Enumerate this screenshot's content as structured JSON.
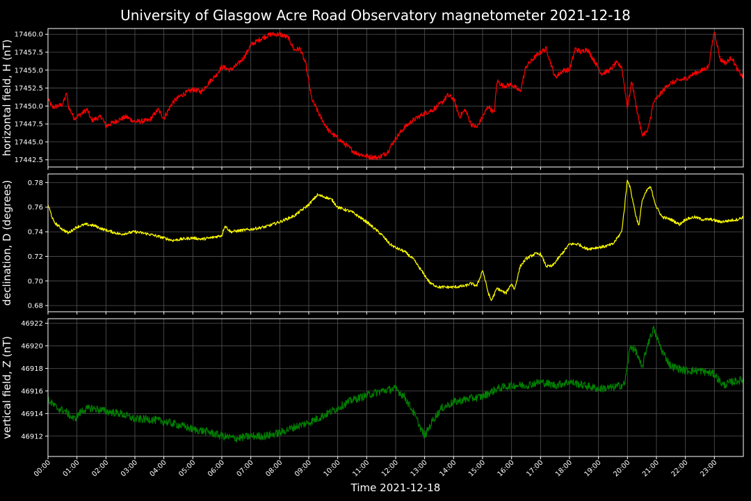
{
  "page": {
    "title": "University of Glasgow Acre Road Observatory magnetometer 2021-12-18",
    "xlabel": "Time 2021-12-18"
  },
  "chart_data": [
    {
      "type": "line",
      "ylabel": "horizontal field, H (nT)",
      "series_color": "#ff0000",
      "ylim": [
        17441.5,
        17460.8
      ],
      "yticks": [
        "17442.5",
        "17445.0",
        "17447.5",
        "17450.0",
        "17452.5",
        "17455.0",
        "17457.5",
        "17460.0"
      ],
      "ytick_values": [
        17442.5,
        17445.0,
        17447.5,
        17450.0,
        17452.5,
        17455.0,
        17457.5,
        17460.0
      ],
      "noise": 0.35,
      "x_hours": [
        0,
        0.15,
        0.5,
        0.65,
        0.7,
        0.9,
        1.0,
        1.35,
        1.5,
        1.85,
        2.0,
        2.4,
        2.7,
        3.0,
        3.5,
        3.8,
        4.0,
        4.3,
        4.6,
        5.0,
        5.3,
        5.6,
        5.8,
        6.0,
        6.3,
        6.6,
        6.8,
        7.0,
        7.4,
        7.7,
        8.0,
        8.3,
        8.5,
        8.7,
        8.9,
        9.1,
        9.4,
        9.7,
        10.0,
        10.3,
        10.6,
        11.0,
        11.4,
        11.7,
        12.0,
        12.3,
        12.6,
        13.0,
        13.3,
        13.6,
        13.8,
        14.0,
        14.2,
        14.4,
        14.6,
        14.8,
        15.0,
        15.2,
        15.4,
        15.5,
        15.7,
        16.0,
        16.3,
        16.5,
        16.8,
        17.0,
        17.2,
        17.5,
        17.8,
        18.0,
        18.2,
        18.4,
        18.6,
        18.9,
        19.1,
        19.4,
        19.6,
        19.8,
        20.0,
        20.15,
        20.3,
        20.5,
        20.7,
        20.9,
        21.1,
        21.4,
        21.7,
        22.0,
        22.3,
        22.6,
        22.8,
        23.0,
        23.2,
        23.4,
        23.6,
        23.8,
        24.0
      ],
      "values": [
        17451.0,
        17449.8,
        17450.2,
        17451.8,
        17450.0,
        17448.3,
        17448.5,
        17449.5,
        17448.0,
        17448.5,
        17447.2,
        17448.0,
        17448.5,
        17447.8,
        17448.0,
        17449.5,
        17448.3,
        17450.5,
        17451.5,
        17452.3,
        17452.0,
        17453.5,
        17454.3,
        17455.5,
        17455.0,
        17456.0,
        17457.0,
        17458.5,
        17459.5,
        17460.0,
        17460.0,
        17459.5,
        17457.8,
        17458.0,
        17455.8,
        17451.0,
        17448.5,
        17446.5,
        17445.5,
        17444.5,
        17443.5,
        17443.0,
        17442.8,
        17443.5,
        17445.5,
        17447.0,
        17448.0,
        17449.0,
        17449.5,
        17450.5,
        17451.5,
        17451.0,
        17448.5,
        17449.5,
        17447.5,
        17447.0,
        17448.5,
        17450.0,
        17449.0,
        17453.5,
        17452.8,
        17453.0,
        17452.0,
        17455.5,
        17456.8,
        17457.5,
        17458.0,
        17454.0,
        17455.0,
        17455.0,
        17458.0,
        17457.5,
        17458.0,
        17456.0,
        17454.5,
        17455.0,
        17456.0,
        17455.5,
        17449.8,
        17453.5,
        17450.0,
        17446.0,
        17446.5,
        17450.5,
        17451.5,
        17453.0,
        17453.5,
        17453.8,
        17454.5,
        17455.0,
        17455.5,
        17460.5,
        17456.5,
        17456.0,
        17456.8,
        17455.0,
        17454.0
      ]
    },
    {
      "type": "line",
      "ylabel": "declination, D (degrees)",
      "series_color": "#ffff00",
      "ylim": [
        0.675,
        0.787
      ],
      "yticks": [
        "0.68",
        "0.70",
        "0.72",
        "0.74",
        "0.76",
        "0.78"
      ],
      "ytick_values": [
        0.68,
        0.7,
        0.72,
        0.74,
        0.76,
        0.78
      ],
      "noise": 0.0012,
      "x_hours": [
        0,
        0.2,
        0.5,
        0.7,
        1.0,
        1.3,
        1.6,
        1.9,
        2.2,
        2.5,
        3.0,
        3.5,
        4.0,
        4.3,
        4.6,
        5.0,
        5.3,
        5.6,
        6.0,
        6.1,
        6.3,
        7.0,
        7.5,
        8.0,
        8.5,
        9.0,
        9.3,
        9.6,
        9.8,
        10.0,
        10.5,
        11.0,
        11.5,
        11.8,
        12.0,
        12.3,
        12.6,
        12.9,
        13.2,
        13.5,
        14.0,
        14.4,
        14.6,
        14.8,
        14.9,
        15.0,
        15.2,
        15.3,
        15.5,
        15.8,
        16.0,
        16.1,
        16.3,
        16.5,
        16.8,
        17.0,
        17.2,
        17.4,
        17.6,
        18.0,
        18.3,
        18.6,
        18.9,
        19.2,
        19.5,
        19.8,
        19.9,
        20.0,
        20.1,
        20.3,
        20.4,
        20.5,
        20.7,
        20.8,
        21.0,
        21.2,
        21.5,
        21.8,
        22.0,
        22.3,
        22.6,
        22.9,
        23.2,
        23.5,
        23.8,
        24.0
      ],
      "values": [
        0.762,
        0.748,
        0.742,
        0.739,
        0.744,
        0.746,
        0.745,
        0.742,
        0.74,
        0.738,
        0.74,
        0.738,
        0.735,
        0.733,
        0.734,
        0.735,
        0.734,
        0.735,
        0.737,
        0.745,
        0.74,
        0.742,
        0.744,
        0.748,
        0.753,
        0.762,
        0.77,
        0.768,
        0.766,
        0.76,
        0.756,
        0.748,
        0.738,
        0.73,
        0.727,
        0.724,
        0.718,
        0.708,
        0.698,
        0.695,
        0.695,
        0.696,
        0.698,
        0.696,
        0.702,
        0.709,
        0.69,
        0.684,
        0.694,
        0.69,
        0.698,
        0.693,
        0.712,
        0.718,
        0.722,
        0.722,
        0.712,
        0.712,
        0.718,
        0.73,
        0.73,
        0.726,
        0.727,
        0.728,
        0.73,
        0.74,
        0.76,
        0.783,
        0.775,
        0.752,
        0.745,
        0.765,
        0.775,
        0.776,
        0.76,
        0.752,
        0.75,
        0.746,
        0.75,
        0.752,
        0.75,
        0.75,
        0.748,
        0.749,
        0.75,
        0.752
      ]
    },
    {
      "type": "line",
      "ylabel": "vertical field, Z (nT)",
      "series_color": "#008000",
      "ylim": [
        46910.2,
        46922.4
      ],
      "yticks": [
        "46912",
        "46914",
        "46916",
        "46918",
        "46920",
        "46922"
      ],
      "ytick_values": [
        46912,
        46914,
        46916,
        46918,
        46920,
        46922
      ],
      "noise": 0.35,
      "x_hours": [
        0,
        0.3,
        0.6,
        0.9,
        1.2,
        1.5,
        2.0,
        2.5,
        3.0,
        3.5,
        4.0,
        4.5,
        5.0,
        5.5,
        6.0,
        6.5,
        7.0,
        7.5,
        8.0,
        8.5,
        9.0,
        9.5,
        10.0,
        10.5,
        11.0,
        11.5,
        12.0,
        12.3,
        12.6,
        12.9,
        13.0,
        13.3,
        13.6,
        14.0,
        14.5,
        15.0,
        15.5,
        16.0,
        16.5,
        17.0,
        17.5,
        18.0,
        18.5,
        19.0,
        19.5,
        19.9,
        20.1,
        20.3,
        20.5,
        20.7,
        20.9,
        21.2,
        21.5,
        22.0,
        22.5,
        23.0,
        23.3,
        23.6,
        24.0
      ],
      "values": [
        46915.2,
        46914.5,
        46914.2,
        46913.5,
        46914.3,
        46914.5,
        46914.2,
        46914.0,
        46913.5,
        46913.5,
        46913.3,
        46913.0,
        46912.6,
        46912.4,
        46912.0,
        46911.8,
        46912.0,
        46912.0,
        46912.3,
        46912.8,
        46913.2,
        46913.8,
        46914.5,
        46915.2,
        46915.6,
        46916.0,
        46916.2,
        46915.5,
        46914.2,
        46912.5,
        46912.0,
        46913.5,
        46914.5,
        46915.0,
        46915.3,
        46915.5,
        46916.2,
        46916.5,
        46916.5,
        46916.8,
        46916.5,
        46916.8,
        46916.5,
        46916.2,
        46916.3,
        46916.6,
        46920.0,
        46919.5,
        46918.0,
        46920.2,
        46921.5,
        46919.5,
        46918.2,
        46917.8,
        46917.8,
        46917.5,
        46916.5,
        46916.8,
        46917.0
      ]
    }
  ],
  "x_axis": {
    "range_hours": [
      0,
      24
    ],
    "tick_labels": [
      "00:00",
      "01:00",
      "02:00",
      "03:00",
      "04:00",
      "05:00",
      "06:00",
      "07:00",
      "08:00",
      "09:00",
      "10:00",
      "11:00",
      "12:00",
      "13:00",
      "14:00",
      "15:00",
      "16:00",
      "17:00",
      "18:00",
      "19:00",
      "20:00",
      "21:00",
      "22:00",
      "23:00"
    ]
  },
  "style": {
    "background": "#000000",
    "grid_color": "#555555",
    "axis_color": "#ffffff"
  }
}
